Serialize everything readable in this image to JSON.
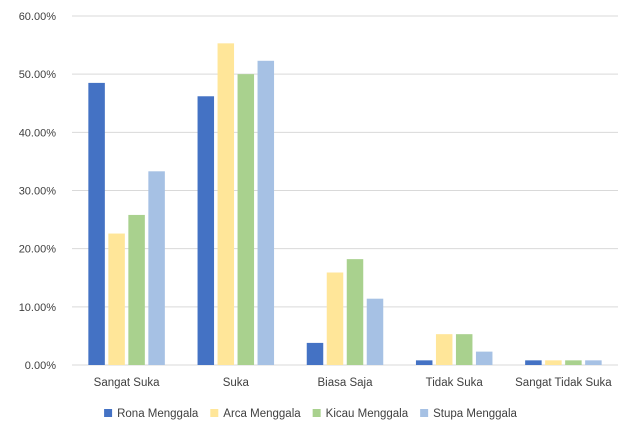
{
  "chart_data": {
    "type": "bar",
    "categories": [
      "Sangat Suka",
      "Suka",
      "Biasa Saja",
      "Tidak Suka",
      "Sangat Tidak Suka"
    ],
    "series": [
      {
        "name": "Rona Menggala",
        "color": "#4472c4",
        "values": [
          48.5,
          46.2,
          3.8,
          0.8,
          0.8
        ]
      },
      {
        "name": "Arca Menggala",
        "color": "#ffe699",
        "values": [
          22.6,
          55.3,
          15.9,
          5.3,
          0.8
        ]
      },
      {
        "name": "Kicau Menggala",
        "color": "#a9d18e",
        "values": [
          25.8,
          50.0,
          18.2,
          5.3,
          0.8
        ]
      },
      {
        "name": "Stupa Menggala",
        "color": "#a6c1e4",
        "values": [
          33.3,
          52.3,
          11.4,
          2.3,
          0.8
        ]
      }
    ],
    "y_ticks": [
      "0.00%",
      "10.00%",
      "20.00%",
      "30.00%",
      "40.00%",
      "50.00%",
      "60.00%"
    ],
    "ylim": [
      0,
      60
    ],
    "y_unit": "percent",
    "grid": true,
    "legend_position": "bottom",
    "title": "",
    "xlabel": "",
    "ylabel": ""
  }
}
